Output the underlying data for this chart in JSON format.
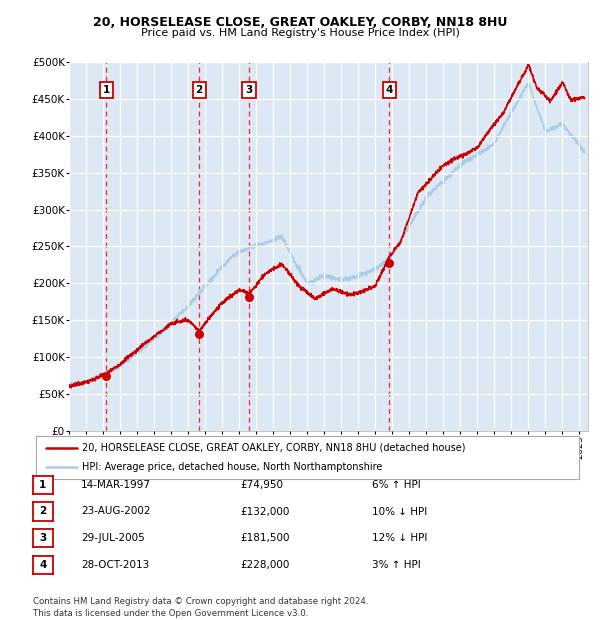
{
  "title": "20, HORSELEASE CLOSE, GREAT OAKLEY, CORBY, NN18 8HU",
  "subtitle": "Price paid vs. HM Land Registry's House Price Index (HPI)",
  "bg_color": "#dce9f5",
  "grid_color": "#ffffff",
  "line_color_red": "#cc0000",
  "line_color_blue": "#aacce8",
  "ylim": [
    0,
    500000
  ],
  "yticks": [
    0,
    50000,
    100000,
    150000,
    200000,
    250000,
    300000,
    350000,
    400000,
    450000,
    500000
  ],
  "transactions": [
    {
      "num": 1,
      "x": 1997.2,
      "price": 74950,
      "label": "1"
    },
    {
      "num": 2,
      "x": 2002.65,
      "price": 132000,
      "label": "2"
    },
    {
      "num": 3,
      "x": 2005.58,
      "price": 181500,
      "label": "3"
    },
    {
      "num": 4,
      "x": 2013.83,
      "price": 228000,
      "label": "4"
    }
  ],
  "table_rows": [
    {
      "num": "1",
      "date": "14-MAR-1997",
      "price": "£74,950",
      "hpi": "6% ↑ HPI"
    },
    {
      "num": "2",
      "date": "23-AUG-2002",
      "price": "£132,000",
      "hpi": "10% ↓ HPI"
    },
    {
      "num": "3",
      "date": "29-JUL-2005",
      "price": "£181,500",
      "hpi": "12% ↓ HPI"
    },
    {
      "num": "4",
      "date": "28-OCT-2013",
      "price": "£228,000",
      "hpi": "3% ↑ HPI"
    }
  ],
  "legend_line1": "20, HORSELEASE CLOSE, GREAT OAKLEY, CORBY, NN18 8HU (detached house)",
  "legend_line2": "HPI: Average price, detached house, North Northamptonshire",
  "footer": "Contains HM Land Registry data © Crown copyright and database right 2024.\nThis data is licensed under the Open Government Licence v3.0.",
  "xmin": 1995,
  "xmax": 2025.5
}
